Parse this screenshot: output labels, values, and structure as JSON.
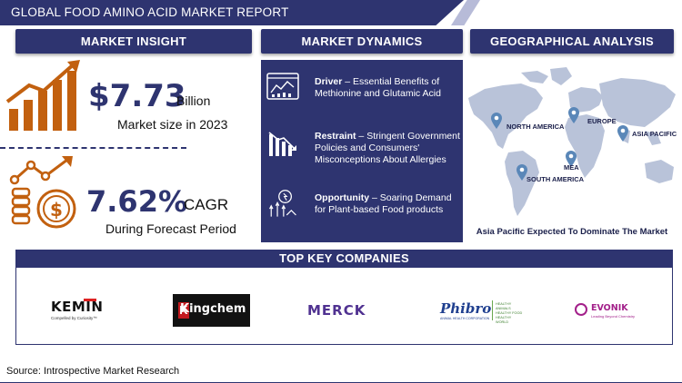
{
  "header": {
    "title": "GLOBAL FOOD AMINO ACID MARKET REPORT"
  },
  "insight": {
    "heading": "MARKET INSIGHT",
    "market_value": "$7.73",
    "market_unit": "Billion",
    "market_caption": "Market size in 2023",
    "cagr_value": "7.62%",
    "cagr_label": "CAGR",
    "cagr_caption": "During Forecast Period"
  },
  "dynamics": {
    "heading": "MARKET DYNAMICS",
    "driver_label": "Driver",
    "driver_text": " – Essential Benefits of Methionine and Glutamic Acid",
    "restraint_label": "Restraint",
    "restraint_text": " – Stringent Government Policies and Consumers' Misconceptions About Allergies",
    "opportunity_label": "Opportunity",
    "opportunity_text": " – Soaring Demand for Plant-based Food products"
  },
  "geo": {
    "heading": "GEOGRAPHICAL ANALYSIS",
    "regions": [
      "NORTH AMERICA",
      "EUROPE",
      "ASIA PACIFIC",
      "MEA",
      "SOUTH AMERICA"
    ],
    "caption": "Asia Pacific Expected To Dominate The Market"
  },
  "companies": {
    "heading": "TOP KEY COMPANIES",
    "kemin": "KEMIN",
    "kemin_tag": "Compelled by Curiosity™",
    "kingchem": "Kingchem",
    "merck": "MERCK",
    "phibro": "Phibro",
    "phibro_tag": "ANIMAL HEALTH CORPORATION",
    "phibro_side": "HEALTHY ANIMALS HEALTHY FOOD HEALTHY WORLD",
    "evonik": "EVONIK",
    "evonik_tag": "Leading Beyond Chemistry"
  },
  "source": "Source: Introspective Market Research",
  "colors": {
    "navy": "#2e3470",
    "orange": "#c2600f",
    "map": "#b9c3d9",
    "pin": "#5a87b8"
  }
}
